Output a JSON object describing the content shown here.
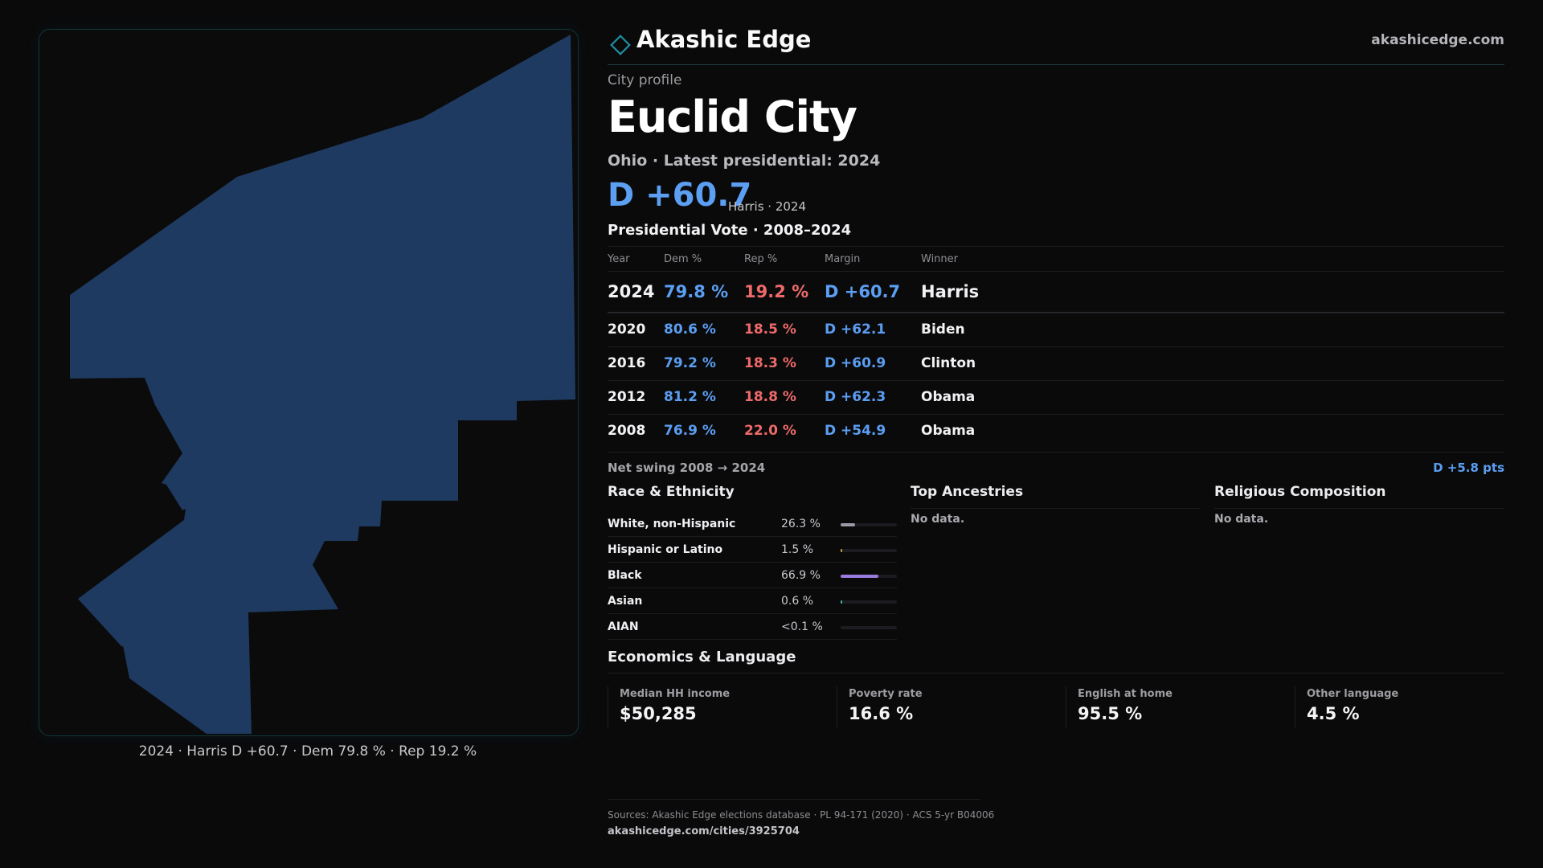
{
  "map": {
    "caption": "2024 · Harris D +60.7 · Dem 79.8 % · Rep 19.2 %",
    "fill_color": "#1f3a60"
  },
  "header": {
    "brand": "Akashic Edge",
    "site": "akashicedge.com",
    "logo_icon": "diamond-icon"
  },
  "profile": {
    "kicker": "City profile",
    "title": "Euclid City",
    "subtitle": "Ohio · Latest presidential: 2024",
    "margin": "D +60.7",
    "margin_note": "Harris · 2024"
  },
  "vote_table": {
    "title": "Presidential Vote · 2008–2024",
    "headers": [
      "Year",
      "Dem %",
      "Rep %",
      "Margin",
      "Winner"
    ],
    "rows": [
      {
        "year": "2024",
        "dem": "79.8 %",
        "rep": "19.2 %",
        "margin": "D +60.7",
        "winner": "Harris"
      },
      {
        "year": "2020",
        "dem": "80.6 %",
        "rep": "18.5 %",
        "margin": "D +62.1",
        "winner": "Biden"
      },
      {
        "year": "2016",
        "dem": "79.2 %",
        "rep": "18.3 %",
        "margin": "D +60.9",
        "winner": "Clinton"
      },
      {
        "year": "2012",
        "dem": "81.2 %",
        "rep": "18.8 %",
        "margin": "D +62.3",
        "winner": "Obama"
      },
      {
        "year": "2008",
        "dem": "76.9 %",
        "rep": "22.0 %",
        "margin": "D +54.9",
        "winner": "Obama"
      }
    ],
    "swing_label": "Net swing 2008 → 2024",
    "swing_value": "D +5.8 pts"
  },
  "race": {
    "title": "Race & Ethnicity",
    "items": [
      {
        "label": "White, non-Hispanic",
        "value": "26.3 %",
        "share": 0.263,
        "color": "#9a9aa6"
      },
      {
        "label": "Hispanic or Latino",
        "value": "1.5 %",
        "share": 0.015,
        "color": "#c9a23a"
      },
      {
        "label": "Black",
        "value": "66.9 %",
        "share": 0.669,
        "color": "#9b7be0"
      },
      {
        "label": "Asian",
        "value": "0.6 %",
        "share": 0.006,
        "color": "#3fb8a8"
      },
      {
        "label": "AIAN",
        "value": "<0.1 %",
        "share": 0.0,
        "color": "#c07a4a"
      }
    ]
  },
  "ancestries": {
    "title": "Top Ancestries",
    "empty": "No data."
  },
  "religion": {
    "title": "Religious Composition",
    "empty": "No data."
  },
  "economics": {
    "title": "Economics & Language",
    "stats": [
      {
        "label": "Median HH income",
        "value": "$50,285"
      },
      {
        "label": "Poverty rate",
        "value": "16.6 %"
      },
      {
        "label": "English at home",
        "value": "95.5 %"
      },
      {
        "label": "Other language",
        "value": "4.5 %"
      }
    ]
  },
  "footer": {
    "sources": "Sources: Akashic Edge elections database · PL 94-171 (2020) · ACS 5-yr B04006",
    "url": "akashicedge.com/cities/3925704"
  }
}
